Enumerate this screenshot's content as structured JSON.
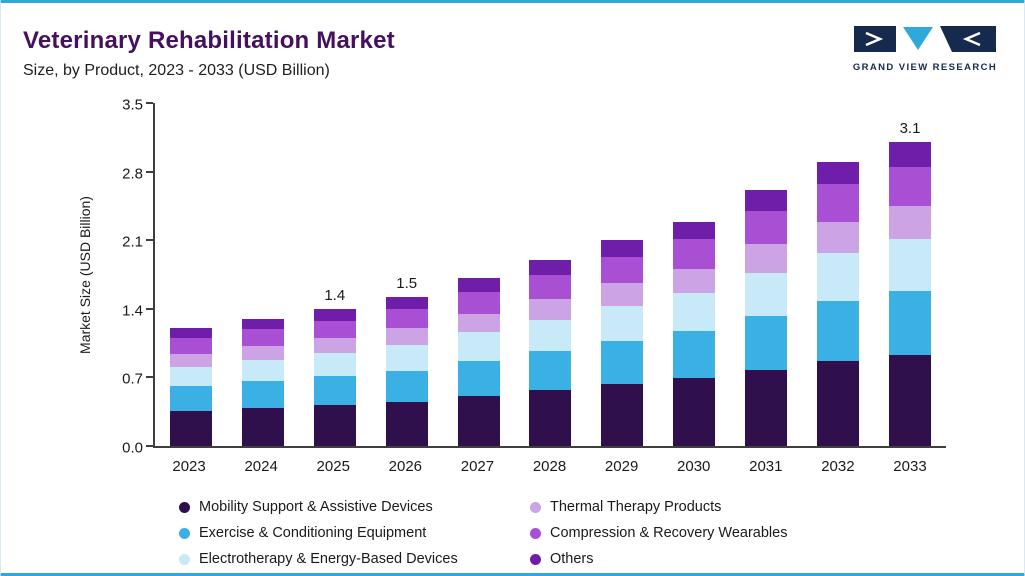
{
  "header": {
    "title": "Veterinary Rehabilitation Market",
    "subtitle": "Size, by Product, 2023 - 2033 (USD Billion)"
  },
  "brand": {
    "name": "GRAND VIEW RESEARCH",
    "navy": "#16294E",
    "cyan": "#2FA9DC"
  },
  "chart_data": {
    "type": "bar",
    "stacked": true,
    "title": "Veterinary Rehabilitation Market Size, by Product, 2023 - 2033 (USD Billion)",
    "xlabel": "",
    "ylabel": "Market Size (USD Billion)",
    "ylim": [
      0,
      3.5
    ],
    "yticks": [
      0,
      0.7,
      1.4,
      2.1,
      2.8,
      3.5
    ],
    "grid": false,
    "legend_position": "bottom",
    "categories": [
      "2023",
      "2024",
      "2025",
      "2026",
      "2027",
      "2028",
      "2029",
      "2030",
      "2031",
      "2032",
      "2033"
    ],
    "series": [
      {
        "name": "Mobility Support & Assistive Devices",
        "color": "#30104C",
        "values": [
          0.36,
          0.39,
          0.42,
          0.45,
          0.51,
          0.57,
          0.63,
          0.69,
          0.78,
          0.87,
          0.93
        ]
      },
      {
        "name": "Exercise & Conditioning Equipment",
        "color": "#3BB0E5",
        "values": [
          0.25,
          0.27,
          0.29,
          0.32,
          0.36,
          0.4,
          0.44,
          0.48,
          0.55,
          0.61,
          0.65
        ]
      },
      {
        "name": "Electrotherapy & Energy-Based Devices",
        "color": "#C7E9F8",
        "values": [
          0.2,
          0.22,
          0.24,
          0.26,
          0.29,
          0.32,
          0.36,
          0.39,
          0.44,
          0.49,
          0.53
        ]
      },
      {
        "name": "Thermal Therapy Products",
        "color": "#CCA3E5",
        "values": [
          0.13,
          0.14,
          0.15,
          0.17,
          0.19,
          0.21,
          0.23,
          0.25,
          0.29,
          0.32,
          0.34
        ]
      },
      {
        "name": "Compression & Recovery Wearables",
        "color": "#A84FD3",
        "values": [
          0.16,
          0.17,
          0.18,
          0.2,
          0.22,
          0.25,
          0.27,
          0.3,
          0.34,
          0.38,
          0.4
        ]
      },
      {
        "name": "Others",
        "color": "#6E1EA8",
        "values": [
          0.1,
          0.11,
          0.12,
          0.12,
          0.14,
          0.15,
          0.17,
          0.18,
          0.21,
          0.23,
          0.25
        ]
      }
    ],
    "bar_labels": {
      "2025": "1.4",
      "2026": "1.5",
      "2033": "3.1"
    }
  }
}
